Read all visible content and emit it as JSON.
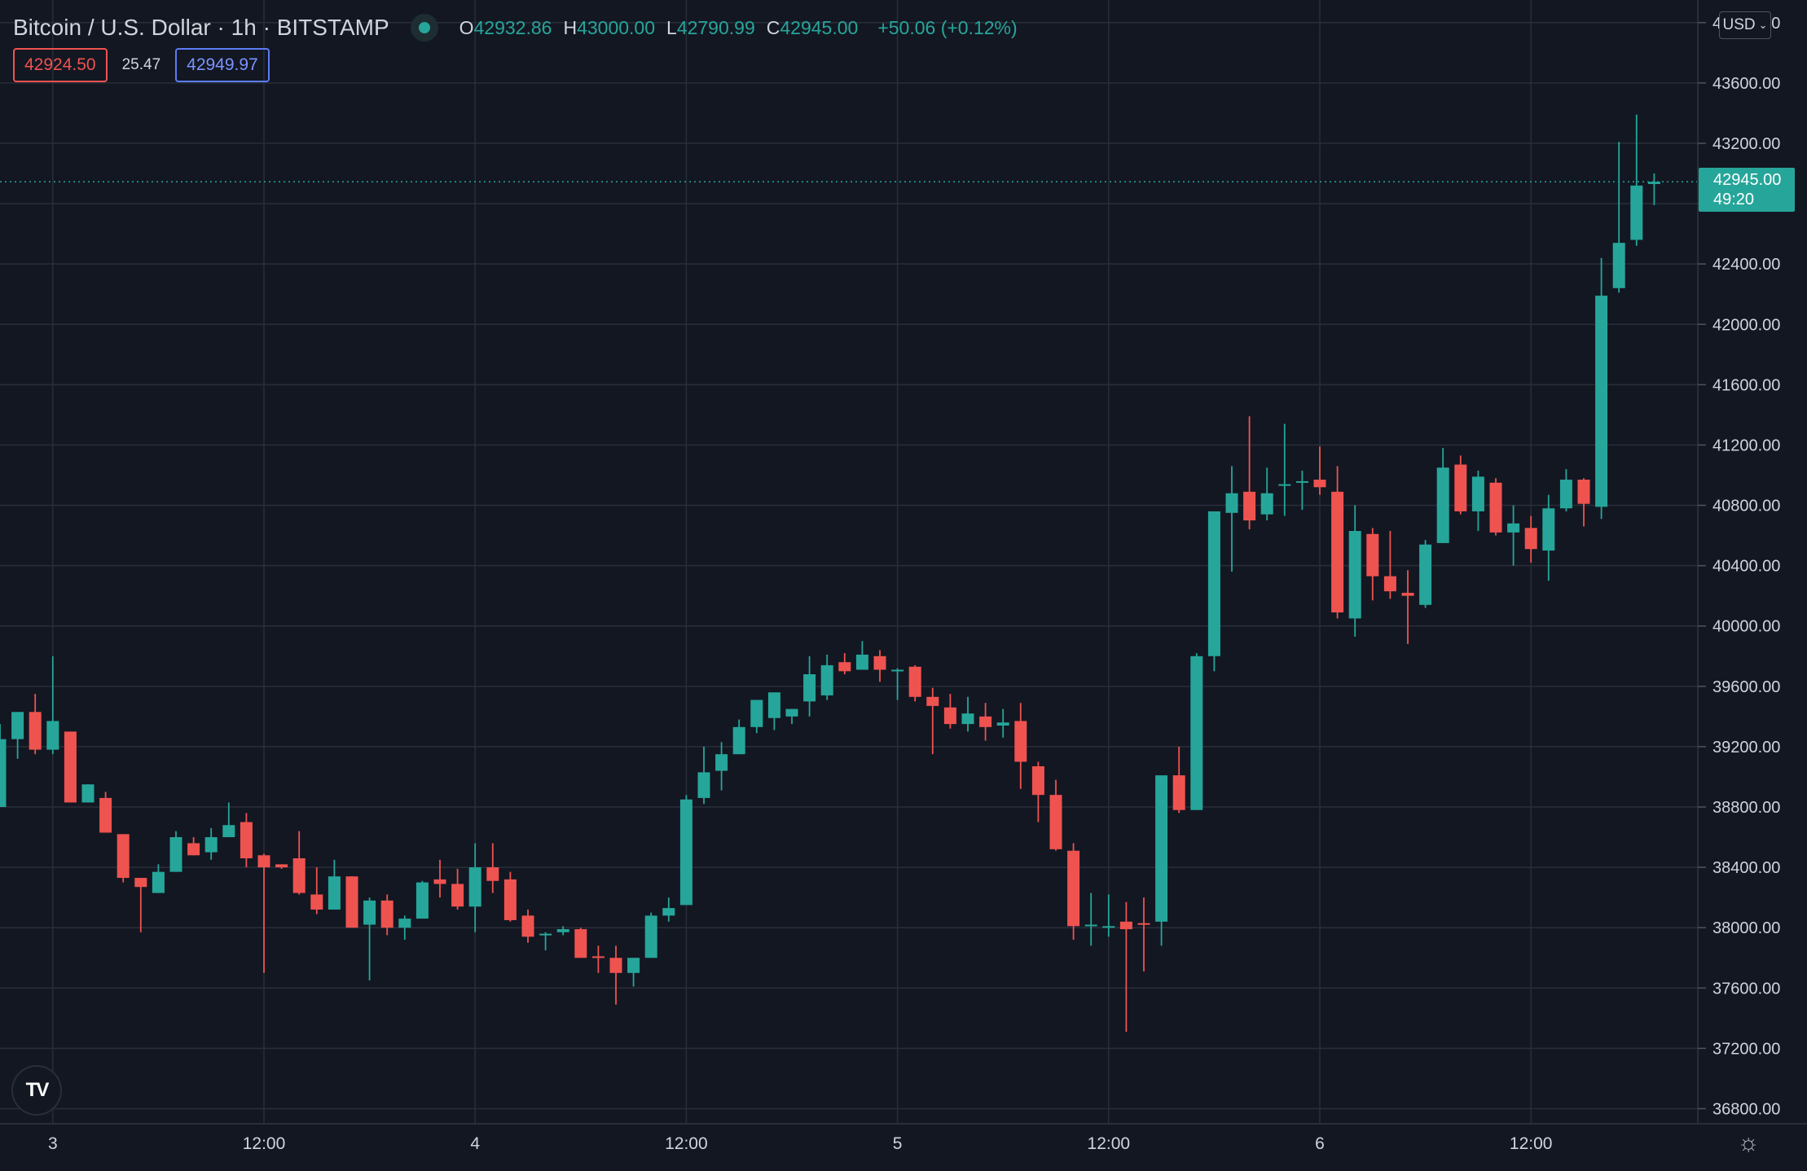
{
  "header": {
    "symbol": "Bitcoin / U.S. Dollar",
    "interval": "1h",
    "exchange": "BITSTAMP",
    "ohlc": {
      "o_label": "O",
      "o": "42932.86",
      "h_label": "H",
      "h": "43000.00",
      "l_label": "L",
      "l": "42790.99",
      "c_label": "C",
      "c": "42945.00",
      "change": "+50.06 (+0.12%)"
    },
    "sell_price": "42924.50",
    "spread": "25.47",
    "buy_price": "42949.97",
    "currency": "USD"
  },
  "last_price": {
    "price": "42945.00",
    "countdown": "49:20"
  },
  "colors": {
    "background": "#131722",
    "grid": "#2a2e39",
    "up": "#26a69a",
    "down": "#ef5350",
    "axis_text": "#d1d4dc"
  },
  "chart_data": {
    "type": "candlestick",
    "interval": "1h",
    "y_ticks": [
      "36800.00",
      "37200.00",
      "37600.00",
      "38000.00",
      "38400.00",
      "38800.00",
      "39200.00",
      "39600.00",
      "40000.00",
      "40400.00",
      "40800.00",
      "41200.00",
      "41600.00",
      "42000.00",
      "42400.00",
      "42800.00",
      "43200.00",
      "43600.00",
      "44000.00"
    ],
    "x_ticks": [
      {
        "label": "3",
        "index": 3
      },
      {
        "label": "12:00",
        "index": 15
      },
      {
        "label": "4",
        "index": 27
      },
      {
        "label": "12:00",
        "index": 39
      },
      {
        "label": "5",
        "index": 51
      },
      {
        "label": "12:00",
        "index": 63
      },
      {
        "label": "6",
        "index": 75
      },
      {
        "label": "12:00",
        "index": 87
      }
    ],
    "ylim": [
      36700,
      44150
    ],
    "candles": [
      {
        "o": 38800,
        "h": 39350,
        "l": 38800,
        "c": 39250
      },
      {
        "o": 39250,
        "h": 39430,
        "l": 39120,
        "c": 39430
      },
      {
        "o": 39430,
        "h": 39550,
        "l": 39150,
        "c": 39180
      },
      {
        "o": 39180,
        "h": 39800,
        "l": 39150,
        "c": 39370
      },
      {
        "o": 39300,
        "h": 39300,
        "l": 38830,
        "c": 38830
      },
      {
        "o": 38830,
        "h": 38950,
        "l": 38830,
        "c": 38950
      },
      {
        "o": 38860,
        "h": 38900,
        "l": 38630,
        "c": 38630
      },
      {
        "o": 38620,
        "h": 38620,
        "l": 38300,
        "c": 38330
      },
      {
        "o": 38330,
        "h": 38330,
        "l": 37970,
        "c": 38270
      },
      {
        "o": 38230,
        "h": 38420,
        "l": 38230,
        "c": 38370
      },
      {
        "o": 38370,
        "h": 38640,
        "l": 38370,
        "c": 38600
      },
      {
        "o": 38560,
        "h": 38600,
        "l": 38480,
        "c": 38480
      },
      {
        "o": 38500,
        "h": 38660,
        "l": 38450,
        "c": 38600
      },
      {
        "o": 38600,
        "h": 38830,
        "l": 38600,
        "c": 38680
      },
      {
        "o": 38700,
        "h": 38760,
        "l": 38400,
        "c": 38460
      },
      {
        "o": 38480,
        "h": 38490,
        "l": 37700,
        "c": 38400
      },
      {
        "o": 38420,
        "h": 38420,
        "l": 38390,
        "c": 38400
      },
      {
        "o": 38460,
        "h": 38640,
        "l": 38220,
        "c": 38230
      },
      {
        "o": 38220,
        "h": 38400,
        "l": 38090,
        "c": 38120
      },
      {
        "o": 38120,
        "h": 38450,
        "l": 38120,
        "c": 38340
      },
      {
        "o": 38340,
        "h": 38340,
        "l": 38000,
        "c": 38000
      },
      {
        "o": 38020,
        "h": 38200,
        "l": 37650,
        "c": 38180
      },
      {
        "o": 38180,
        "h": 38220,
        "l": 37950,
        "c": 38000
      },
      {
        "o": 38000,
        "h": 38080,
        "l": 37920,
        "c": 38060
      },
      {
        "o": 38060,
        "h": 38310,
        "l": 38060,
        "c": 38300
      },
      {
        "o": 38320,
        "h": 38450,
        "l": 38200,
        "c": 38290
      },
      {
        "o": 38290,
        "h": 38390,
        "l": 38120,
        "c": 38140
      },
      {
        "o": 38140,
        "h": 38560,
        "l": 37970,
        "c": 38400
      },
      {
        "o": 38400,
        "h": 38560,
        "l": 38230,
        "c": 38310
      },
      {
        "o": 38320,
        "h": 38370,
        "l": 38040,
        "c": 38050
      },
      {
        "o": 38080,
        "h": 38120,
        "l": 37900,
        "c": 37940
      },
      {
        "o": 37950,
        "h": 37970,
        "l": 37850,
        "c": 37960
      },
      {
        "o": 37970,
        "h": 38010,
        "l": 37950,
        "c": 37990
      },
      {
        "o": 37990,
        "h": 38000,
        "l": 37800,
        "c": 37800
      },
      {
        "o": 37810,
        "h": 37880,
        "l": 37700,
        "c": 37800
      },
      {
        "o": 37800,
        "h": 37880,
        "l": 37490,
        "c": 37700
      },
      {
        "o": 37700,
        "h": 37800,
        "l": 37610,
        "c": 37800
      },
      {
        "o": 37800,
        "h": 38100,
        "l": 37800,
        "c": 38080
      },
      {
        "o": 38080,
        "h": 38200,
        "l": 38040,
        "c": 38130
      },
      {
        "o": 38150,
        "h": 38880,
        "l": 38150,
        "c": 38850
      },
      {
        "o": 38860,
        "h": 39200,
        "l": 38820,
        "c": 39030
      },
      {
        "o": 39040,
        "h": 39230,
        "l": 38910,
        "c": 39150
      },
      {
        "o": 39150,
        "h": 39380,
        "l": 39150,
        "c": 39330
      },
      {
        "o": 39330,
        "h": 39460,
        "l": 39290,
        "c": 39510
      },
      {
        "o": 39390,
        "h": 39550,
        "l": 39310,
        "c": 39560
      },
      {
        "o": 39400,
        "h": 39450,
        "l": 39350,
        "c": 39450
      },
      {
        "o": 39500,
        "h": 39800,
        "l": 39400,
        "c": 39680
      },
      {
        "o": 39540,
        "h": 39810,
        "l": 39510,
        "c": 39740
      },
      {
        "o": 39760,
        "h": 39820,
        "l": 39680,
        "c": 39700
      },
      {
        "o": 39710,
        "h": 39900,
        "l": 39710,
        "c": 39810
      },
      {
        "o": 39800,
        "h": 39840,
        "l": 39630,
        "c": 39710
      },
      {
        "o": 39700,
        "h": 39720,
        "l": 39510,
        "c": 39710
      },
      {
        "o": 39730,
        "h": 39740,
        "l": 39500,
        "c": 39530
      },
      {
        "o": 39530,
        "h": 39590,
        "l": 39150,
        "c": 39470
      },
      {
        "o": 39460,
        "h": 39550,
        "l": 39320,
        "c": 39350
      },
      {
        "o": 39350,
        "h": 39530,
        "l": 39300,
        "c": 39420
      },
      {
        "o": 39400,
        "h": 39490,
        "l": 39240,
        "c": 39330
      },
      {
        "o": 39340,
        "h": 39450,
        "l": 39260,
        "c": 39360
      },
      {
        "o": 39370,
        "h": 39490,
        "l": 38920,
        "c": 39100
      },
      {
        "o": 39070,
        "h": 39100,
        "l": 38700,
        "c": 38880
      },
      {
        "o": 38880,
        "h": 38980,
        "l": 38510,
        "c": 38520
      },
      {
        "o": 38510,
        "h": 38560,
        "l": 37920,
        "c": 38010
      },
      {
        "o": 38020,
        "h": 38230,
        "l": 37880,
        "c": 38020
      },
      {
        "o": 38010,
        "h": 38220,
        "l": 37940,
        "c": 38010
      },
      {
        "o": 38040,
        "h": 38170,
        "l": 37310,
        "c": 37990
      },
      {
        "o": 38030,
        "h": 38200,
        "l": 37710,
        "c": 38020
      },
      {
        "o": 38040,
        "h": 39000,
        "l": 37880,
        "c": 39010
      },
      {
        "o": 39010,
        "h": 39200,
        "l": 38760,
        "c": 38780
      },
      {
        "o": 38780,
        "h": 39820,
        "l": 38790,
        "c": 39800
      },
      {
        "o": 39800,
        "h": 40760,
        "l": 39700,
        "c": 40760
      },
      {
        "o": 40750,
        "h": 41060,
        "l": 40360,
        "c": 40880
      },
      {
        "o": 40890,
        "h": 41390,
        "l": 40640,
        "c": 40700
      },
      {
        "o": 40740,
        "h": 41050,
        "l": 40700,
        "c": 40880
      },
      {
        "o": 40940,
        "h": 41340,
        "l": 40730,
        "c": 40940
      },
      {
        "o": 40950,
        "h": 41030,
        "l": 40770,
        "c": 40960
      },
      {
        "o": 40970,
        "h": 41190,
        "l": 40870,
        "c": 40920
      },
      {
        "o": 40890,
        "h": 41060,
        "l": 40050,
        "c": 40090
      },
      {
        "o": 40050,
        "h": 40800,
        "l": 39930,
        "c": 40630
      },
      {
        "o": 40610,
        "h": 40650,
        "l": 40170,
        "c": 40330
      },
      {
        "o": 40330,
        "h": 40630,
        "l": 40180,
        "c": 40230
      },
      {
        "o": 40220,
        "h": 40370,
        "l": 39880,
        "c": 40200
      },
      {
        "o": 40140,
        "h": 40570,
        "l": 40120,
        "c": 40540
      },
      {
        "o": 40550,
        "h": 41180,
        "l": 40550,
        "c": 41050
      },
      {
        "o": 41070,
        "h": 41130,
        "l": 40740,
        "c": 40760
      },
      {
        "o": 40760,
        "h": 41030,
        "l": 40630,
        "c": 40990
      },
      {
        "o": 40950,
        "h": 40980,
        "l": 40600,
        "c": 40620
      },
      {
        "o": 40620,
        "h": 40800,
        "l": 40400,
        "c": 40680
      },
      {
        "o": 40650,
        "h": 40730,
        "l": 40420,
        "c": 40510
      },
      {
        "o": 40500,
        "h": 40870,
        "l": 40300,
        "c": 40780
      },
      {
        "o": 40780,
        "h": 41040,
        "l": 40760,
        "c": 40970
      },
      {
        "o": 40970,
        "h": 40980,
        "l": 40660,
        "c": 40810
      },
      {
        "o": 40790,
        "h": 42440,
        "l": 40710,
        "c": 42190
      },
      {
        "o": 42240,
        "h": 43210,
        "l": 42210,
        "c": 42540
      },
      {
        "o": 42560,
        "h": 43390,
        "l": 42520,
        "c": 42920
      },
      {
        "o": 42930,
        "h": 43000,
        "l": 42790,
        "c": 42945
      }
    ]
  }
}
